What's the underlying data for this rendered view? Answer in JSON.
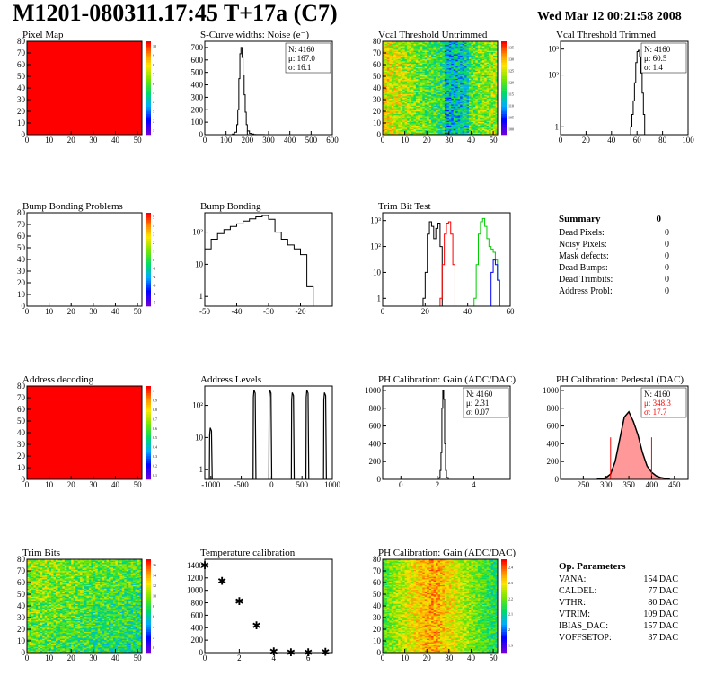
{
  "header": {
    "title": "M1201-080311.17:45 T+17a (C7)",
    "date": "Wed Mar 12 00:21:58 2008"
  },
  "chart_data": [
    {
      "id": "pixel-map",
      "type": "heatmap",
      "title": "Pixel Map",
      "xlim": [
        0,
        52
      ],
      "ylim": [
        0,
        80
      ],
      "xticks": [
        "0",
        "10",
        "20",
        "30",
        "40",
        "50"
      ],
      "yticks": [
        "0",
        "10",
        "20",
        "30",
        "40",
        "50",
        "60",
        "70",
        "80"
      ],
      "fill": "#ff0000",
      "colorbar": {
        "palette": "rainbow",
        "labels": [
          "1",
          "2",
          "3",
          "4",
          "5",
          "6",
          "7",
          "8",
          "9",
          "10"
        ]
      }
    },
    {
      "id": "noise",
      "type": "line",
      "title": "S-Curve widths: Noise (e⁻)",
      "xlim": [
        0,
        600
      ],
      "ylim": [
        0,
        750
      ],
      "xticks": [
        "0",
        "100",
        "200",
        "300",
        "400",
        "500",
        "600"
      ],
      "yticks": [
        "0",
        "100",
        "200",
        "300",
        "400",
        "500",
        "600",
        "700"
      ],
      "stats": [
        "N: 4160",
        "μ: 167.0",
        "σ: 16.1"
      ],
      "x": [
        120,
        130,
        140,
        150,
        155,
        160,
        165,
        170,
        175,
        180,
        185,
        190,
        195,
        200,
        210,
        220,
        230,
        240,
        260,
        280,
        300
      ],
      "values": [
        0,
        5,
        20,
        80,
        200,
        450,
        650,
        700,
        620,
        480,
        320,
        180,
        80,
        30,
        10,
        5,
        2,
        1,
        1,
        0,
        0
      ]
    },
    {
      "id": "vcal-untrimmed",
      "type": "heatmap",
      "title": "Vcal Threshold Untrimmed",
      "xlim": [
        0,
        52
      ],
      "ylim": [
        0,
        80
      ],
      "xticks": [
        "0",
        "10",
        "20",
        "30",
        "40",
        "50"
      ],
      "yticks": [
        "0",
        "10",
        "20",
        "30",
        "40",
        "50",
        "60",
        "70",
        "80"
      ],
      "pattern": "vcal",
      "colorbar": {
        "palette": "rainbow",
        "labels": [
          "100",
          "105",
          "110",
          "115",
          "120",
          "125",
          "130",
          "135"
        ]
      }
    },
    {
      "id": "vcal-trimmed",
      "type": "line",
      "title": "Vcal Threshold Trimmed",
      "xlim": [
        0,
        100
      ],
      "log": true,
      "xticks": [
        "0",
        "20",
        "40",
        "60",
        "80",
        "100"
      ],
      "yticks": [
        "1",
        "10²",
        "10³"
      ],
      "stats": [
        "N: 4160",
        "μ: 60.5",
        "σ:  1.4"
      ],
      "x": [
        55,
        56,
        57,
        58,
        59,
        60,
        61,
        62,
        63,
        64,
        65,
        66
      ],
      "values": [
        1,
        3,
        10,
        50,
        300,
        800,
        900,
        500,
        120,
        20,
        3,
        1
      ]
    },
    {
      "id": "bump-problems",
      "type": "heatmap",
      "title": "Bump Bonding Problems",
      "xlim": [
        0,
        52
      ],
      "ylim": [
        0,
        80
      ],
      "xticks": [
        "0",
        "10",
        "20",
        "30",
        "40",
        "50"
      ],
      "yticks": [
        "0",
        "10",
        "20",
        "30",
        "40",
        "50",
        "60",
        "70",
        "80"
      ],
      "fill": "#ffffff",
      "colorbar": {
        "palette": "rainbow",
        "labels": [
          "-5",
          "-4",
          "-3",
          "-2",
          "-1",
          "0",
          "1",
          "2",
          "3",
          "4",
          "5"
        ]
      }
    },
    {
      "id": "bump-bonding",
      "type": "line",
      "title": "Bump Bonding",
      "xlim": [
        -50,
        -10
      ],
      "log": true,
      "xticks": [
        "-50",
        "-40",
        "-30",
        "-20"
      ],
      "yticks": [
        "1",
        "10",
        "10²"
      ],
      "x": [
        -50,
        -48,
        -46,
        -44,
        -42,
        -40,
        -38,
        -36,
        -34,
        -32,
        -30,
        -28,
        -26,
        -24,
        -22,
        -20,
        -18,
        -16
      ],
      "values": [
        30,
        60,
        90,
        120,
        150,
        180,
        220,
        260,
        300,
        330,
        250,
        100,
        60,
        40,
        30,
        20,
        2,
        0
      ]
    },
    {
      "id": "trim-bit-test",
      "type": "line",
      "title": "Trim Bit Test",
      "xlim": [
        0,
        60
      ],
      "log": true,
      "xticks": [
        "0",
        "20",
        "40",
        "60"
      ],
      "yticks": [
        "1",
        "10",
        "10²",
        "10³"
      ],
      "series": [
        {
          "color": "#000000",
          "x": [
            19,
            20,
            21,
            22,
            23,
            24,
            25,
            26,
            27,
            28
          ],
          "values": [
            1,
            10,
            300,
            900,
            600,
            200,
            500,
            800,
            100,
            1
          ]
        },
        {
          "color": "#ff0000",
          "x": [
            27,
            28,
            29,
            30,
            31,
            32,
            33,
            34
          ],
          "values": [
            1,
            20,
            300,
            800,
            900,
            300,
            20,
            1
          ]
        },
        {
          "color": "#00cc00",
          "x": [
            43,
            44,
            45,
            46,
            47,
            48,
            49,
            50,
            51,
            52,
            53,
            54,
            55
          ],
          "values": [
            1,
            20,
            300,
            900,
            1200,
            600,
            200,
            100,
            80,
            60,
            30,
            5,
            1
          ]
        },
        {
          "color": "#0000ff",
          "x": [
            51,
            52,
            53,
            54,
            55
          ],
          "values": [
            10,
            30,
            20,
            5,
            1
          ]
        }
      ]
    },
    {
      "id": "address-decoding",
      "type": "heatmap",
      "title": "Address decoding",
      "xlim": [
        0,
        52
      ],
      "ylim": [
        0,
        80
      ],
      "xticks": [
        "0",
        "10",
        "20",
        "30",
        "40",
        "50"
      ],
      "yticks": [
        "0",
        "10",
        "20",
        "30",
        "40",
        "50",
        "60",
        "70",
        "80"
      ],
      "fill": "#ff0000",
      "colorbar": {
        "palette": "rainbow",
        "labels": [
          "0.1",
          "0.2",
          "0.3",
          "0.4",
          "0.5",
          "0.6",
          "0.7",
          "0.8",
          "0.9",
          "1"
        ]
      }
    },
    {
      "id": "address-levels",
      "type": "line",
      "title": "Address Levels",
      "xlim": [
        -1100,
        1000
      ],
      "log": true,
      "xticks": [
        "-1000",
        "-500",
        "0",
        "500",
        "1000"
      ],
      "yticks": [
        "1",
        "10",
        "10²"
      ],
      "peaks": [
        -1000,
        -280,
        -20,
        350,
        590,
        880
      ],
      "peak_heights": [
        20,
        300,
        300,
        250,
        300,
        250
      ]
    },
    {
      "id": "ph-gain",
      "type": "line",
      "title": "PH Calibration: Gain (ADC/DAC)",
      "xlim": [
        -1,
        6
      ],
      "ylim": [
        0,
        1050
      ],
      "xticks": [
        "0",
        "2",
        "4"
      ],
      "yticks": [
        "0",
        "200",
        "400",
        "600",
        "800",
        "1000"
      ],
      "stats": [
        "N: 4160",
        "μ: 2.31",
        "σ: 0.07"
      ],
      "x": [
        2.0,
        2.1,
        2.15,
        2.2,
        2.25,
        2.3,
        2.35,
        2.4,
        2.45,
        2.5,
        2.6
      ],
      "values": [
        0,
        20,
        100,
        300,
        800,
        1000,
        900,
        400,
        100,
        20,
        0
      ]
    },
    {
      "id": "ph-pedestal",
      "type": "line",
      "title": "PH Calibration: Pedestal (DAC)",
      "xlim": [
        200,
        480
      ],
      "ylim": [
        0,
        1050
      ],
      "xticks": [
        "250",
        "300",
        "350",
        "400",
        "450"
      ],
      "yticks": [
        "0",
        "200",
        "400",
        "600",
        "800",
        "1000"
      ],
      "stats": [
        "N: 4160",
        "μ: 348.3",
        "σ: 17.7"
      ],
      "cut_lines": [
        310,
        400
      ],
      "x": [
        280,
        290,
        300,
        310,
        320,
        330,
        340,
        350,
        360,
        370,
        380,
        390,
        400,
        410,
        420,
        430,
        440
      ],
      "values": [
        2,
        5,
        20,
        60,
        200,
        450,
        700,
        760,
        650,
        500,
        300,
        150,
        80,
        40,
        20,
        10,
        5
      ]
    },
    {
      "id": "trim-bits",
      "type": "heatmap",
      "title": "Trim Bits",
      "xlim": [
        0,
        52
      ],
      "ylim": [
        0,
        80
      ],
      "xticks": [
        "0",
        "10",
        "20",
        "30",
        "40",
        "50"
      ],
      "yticks": [
        "0",
        "10",
        "20",
        "30",
        "40",
        "50",
        "60",
        "70",
        "80"
      ],
      "pattern": "trim",
      "colorbar": {
        "palette": "rainbow",
        "labels": [
          "0",
          "2",
          "4",
          "6",
          "8",
          "10",
          "12",
          "14",
          "16"
        ]
      }
    },
    {
      "id": "temperature",
      "type": "scatter",
      "title": "Temperature calibration",
      "xlim": [
        0,
        7.4
      ],
      "ylim": [
        0,
        1500
      ],
      "xticks": [
        "0",
        "2",
        "4",
        "6"
      ],
      "yticks": [
        "0",
        "200",
        "400",
        "600",
        "800",
        "1000",
        "1200",
        "1400"
      ],
      "x": [
        0,
        1,
        2,
        3,
        4,
        5,
        6,
        7
      ],
      "values": [
        1400,
        1150,
        820,
        430,
        15,
        0,
        -10,
        5
      ]
    },
    {
      "id": "ph-gain-map",
      "type": "heatmap",
      "title": "PH Calibration: Gain (ADC/DAC)",
      "xlim": [
        0,
        52
      ],
      "ylim": [
        0,
        80
      ],
      "xticks": [
        "0",
        "10",
        "20",
        "30",
        "40",
        "50"
      ],
      "yticks": [
        "0",
        "10",
        "20",
        "30",
        "40",
        "50",
        "60",
        "70",
        "80"
      ],
      "pattern": "gain",
      "colorbar": {
        "palette": "rainbow",
        "labels": [
          "1.9",
          "2",
          "2.1",
          "2.2",
          "2.3",
          "2.4"
        ]
      }
    }
  ],
  "summary": {
    "title": "Summary",
    "value": "0",
    "rows": [
      {
        "label": "Dead Pixels:",
        "value": "0"
      },
      {
        "label": "Noisy Pixels:",
        "value": "0"
      },
      {
        "label": "Mask defects:",
        "value": "0"
      },
      {
        "label": "Dead Bumps:",
        "value": "0"
      },
      {
        "label": "Dead Trimbits:",
        "value": "0"
      },
      {
        "label": "Address Probl:",
        "value": "0"
      }
    ]
  },
  "op_params": {
    "title": "Op. Parameters",
    "rows": [
      {
        "label": "VANA:",
        "value": "154 DAC"
      },
      {
        "label": "CALDEL:",
        "value": "77 DAC"
      },
      {
        "label": "VTHR:",
        "value": "80 DAC"
      },
      {
        "label": "VTRIM:",
        "value": "109 DAC"
      },
      {
        "label": "IBIAS_DAC:",
        "value": "157 DAC"
      },
      {
        "label": "VOFFSETOP:",
        "value": "37 DAC"
      }
    ]
  },
  "colors": {
    "red": "#ff0000",
    "axis": "#000000",
    "pedestal_fill": "#ff9999"
  }
}
